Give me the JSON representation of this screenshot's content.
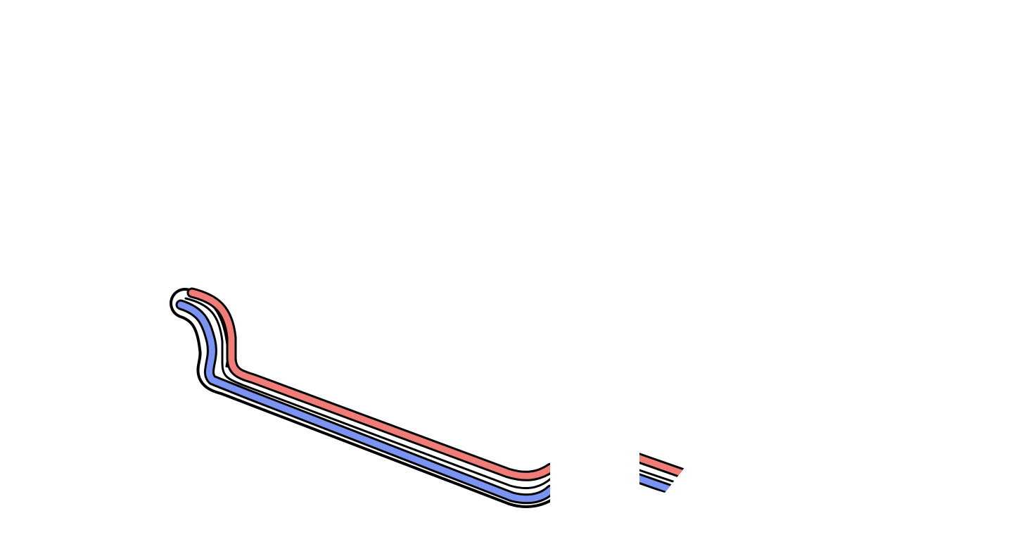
{
  "scene": {
    "background_color": "#ffffff"
  },
  "track": {
    "outline_color": "#000000",
    "inner_line_color": "#ffffff",
    "lanes": [
      {
        "name": "red-lane",
        "color": "#f07c78"
      },
      {
        "name": "blue-lane",
        "color": "#7b94f2"
      }
    ]
  }
}
